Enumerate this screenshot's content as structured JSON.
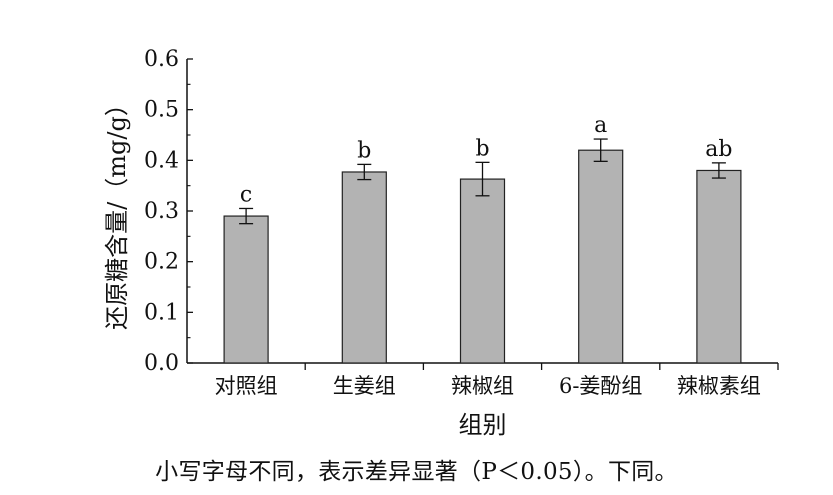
{
  "chart_data": {
    "type": "bar",
    "categories": [
      "对照组",
      "生姜组",
      "辣椒组",
      "6-姜酚组",
      "辣椒素组"
    ],
    "values": [
      0.29,
      0.377,
      0.363,
      0.42,
      0.38
    ],
    "errors": [
      0.015,
      0.015,
      0.033,
      0.022,
      0.015
    ],
    "significance_labels": [
      "c",
      "b",
      "b",
      "a",
      "ab"
    ],
    "title": "",
    "xlabel": "组别",
    "ylabel": "还原糖含量/（mg/g）",
    "ylim": [
      0,
      0.6
    ],
    "yticks": [
      "0.0",
      "0.1",
      "0.2",
      "0.3",
      "0.4",
      "0.5",
      "0.6"
    ],
    "bar_color": "#b3b3b3",
    "grid": false
  },
  "caption": "小写字母不同，表示差异显著（P＜0.05）。下同。"
}
